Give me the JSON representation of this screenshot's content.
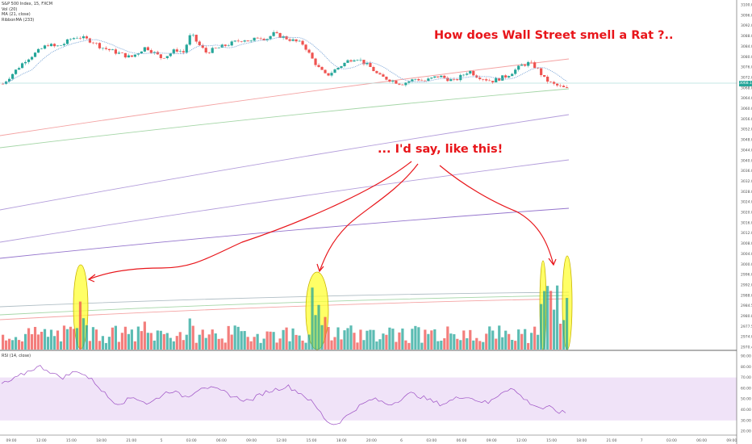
{
  "colors": {
    "up": "#26a69a",
    "down": "#ef5350",
    "vol_up": "#26a69a",
    "vol_down": "#ef5350",
    "ma_short": "#7fa8d8",
    "ma_long": "#ef9a9a",
    "ribbon": [
      "#f4a3a3",
      "#a5d6a7",
      "#b39ddb",
      "#9575cd",
      "#b0bec5"
    ],
    "annotation": "#e8151a",
    "highlight_fill": "#ffff33",
    "highlight_stroke": "#c8b400",
    "rsi_line": "#9c4fc4",
    "rsi_band": "#e9d7f5"
  },
  "legend": {
    "line1": "S&P 500 Index, 15, FXCM",
    "line2": "Vol (20)",
    "line3": "MA (21, close)",
    "line4": "RibbonMA (233)"
  },
  "rsi_legend": "RSI (14, close)",
  "annotations": {
    "title": "How does Wall Street smell a Rat ?..",
    "subtitle": "... I'd say, like this!"
  },
  "chart_data": [
    {
      "type": "candlestick",
      "ylim": [
        2970,
        3100
      ],
      "y_ticks": [
        "3100.0",
        "3096.0",
        "3092.0",
        "3088.0",
        "3084.0",
        "3080.0",
        "3076.0",
        "3072.0",
        "3068.0",
        "3064.0",
        "3060.0",
        "3056.0",
        "3052.0",
        "3048.0",
        "3044.0",
        "3040.0",
        "3036.0",
        "3032.0",
        "3028.0",
        "3024.0",
        "3020.0",
        "3016.0",
        "3012.0",
        "3008.0",
        "3004.0",
        "3000.0",
        "2996.0",
        "2992.0",
        "2988.0",
        "2984.5",
        "2980.8",
        "2977.5",
        "2974.0",
        "2970.4"
      ],
      "last_price": "3068.1",
      "price_path": [
        3070,
        3073,
        3076,
        3079,
        3081,
        3083,
        3085,
        3084,
        3085,
        3087,
        3088,
        3087,
        3086,
        3084,
        3083,
        3082,
        3081,
        3080,
        3082,
        3084,
        3082,
        3080,
        3081,
        3083,
        3082,
        3089,
        3085,
        3082,
        3083,
        3084,
        3085,
        3086,
        3087,
        3086,
        3088,
        3087,
        3089,
        3088,
        3087,
        3086,
        3085,
        3080,
        3076,
        3073,
        3075,
        3077,
        3079,
        3080,
        3078,
        3076,
        3073,
        3072,
        3071,
        3070,
        3071,
        3072,
        3071,
        3072,
        3073,
        3072,
        3071,
        3073,
        3075,
        3073,
        3072,
        3071,
        3072,
        3073,
        3075,
        3077,
        3078,
        3076,
        3072,
        3070,
        3069,
        3068
      ],
      "x_ticks": [
        "09:00",
        "12:00",
        "15:00",
        "18:00",
        "21:00",
        "5",
        "03:00",
        "06:00",
        "09:00",
        "12:00",
        "15:00",
        "18:00",
        "20:00",
        "6",
        "03:00",
        "06:00",
        "09:00",
        "12:00",
        "15:00",
        "18:00",
        "21:00",
        "7",
        "03:00",
        "06:00",
        "09:00"
      ]
    },
    {
      "type": "bar",
      "name": "volume",
      "spike_groups": [
        "15:00 day 1",
        "15:00 day 2",
        "15:00 day 3"
      ]
    },
    {
      "type": "line",
      "name": "RSI",
      "ylim": [
        20,
        90
      ],
      "y_ticks": [
        "90.00",
        "80.00",
        "70.00",
        "60.00",
        "50.00",
        "40.00",
        "30.00",
        "20.00"
      ],
      "band": [
        30,
        70
      ],
      "values": [
        64,
        66,
        70,
        74,
        78,
        80,
        77,
        72,
        70,
        74,
        76,
        71,
        66,
        58,
        50,
        46,
        48,
        52,
        49,
        45,
        50,
        55,
        58,
        54,
        52,
        57,
        62,
        60,
        58,
        56,
        52,
        50,
        48,
        52,
        56,
        58,
        60,
        62,
        58,
        54,
        48,
        40,
        30,
        26,
        30,
        36,
        42,
        46,
        50,
        48,
        45,
        47,
        52,
        55,
        53,
        50,
        47,
        45,
        48,
        51,
        53,
        50,
        48,
        46,
        52,
        58,
        60,
        54,
        48,
        44,
        41,
        42,
        38,
        37
      ]
    }
  ]
}
